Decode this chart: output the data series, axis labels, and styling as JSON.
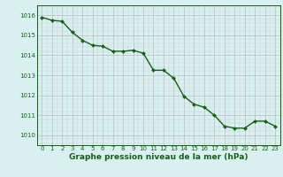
{
  "x": [
    0,
    1,
    2,
    3,
    4,
    5,
    6,
    7,
    8,
    9,
    10,
    11,
    12,
    13,
    14,
    15,
    16,
    17,
    18,
    19,
    20,
    21,
    22,
    23
  ],
  "y": [
    1015.9,
    1015.75,
    1015.7,
    1015.15,
    1014.75,
    1014.5,
    1014.45,
    1014.2,
    1014.2,
    1014.25,
    1014.1,
    1013.25,
    1013.25,
    1012.85,
    1011.95,
    1011.55,
    1011.4,
    1011.0,
    1010.45,
    1010.35,
    1010.35,
    1010.7,
    1010.7,
    1010.45
  ],
  "ylim": [
    1009.5,
    1016.5
  ],
  "yticks": [
    1010,
    1011,
    1012,
    1013,
    1014,
    1015,
    1016
  ],
  "xticks": [
    0,
    1,
    2,
    3,
    4,
    5,
    6,
    7,
    8,
    9,
    10,
    11,
    12,
    13,
    14,
    15,
    16,
    17,
    18,
    19,
    20,
    21,
    22,
    23
  ],
  "line_color": "#1a5c1a",
  "marker": "D",
  "markersize": 2.0,
  "linewidth": 1.0,
  "background_color": "#d9f0f0",
  "grid_color_major": "#b0b0b0",
  "grid_color_minor": "#c8c8c8",
  "xlabel": "Graphe pression niveau de la mer (hPa)",
  "xlabel_fontsize": 6.5,
  "xlabel_color": "#1a5c1a",
  "tick_fontsize": 5.0,
  "tick_color": "#1a5c1a",
  "spine_color": "#1a5c1a",
  "xlim_left": -0.5,
  "xlim_right": 23.5
}
